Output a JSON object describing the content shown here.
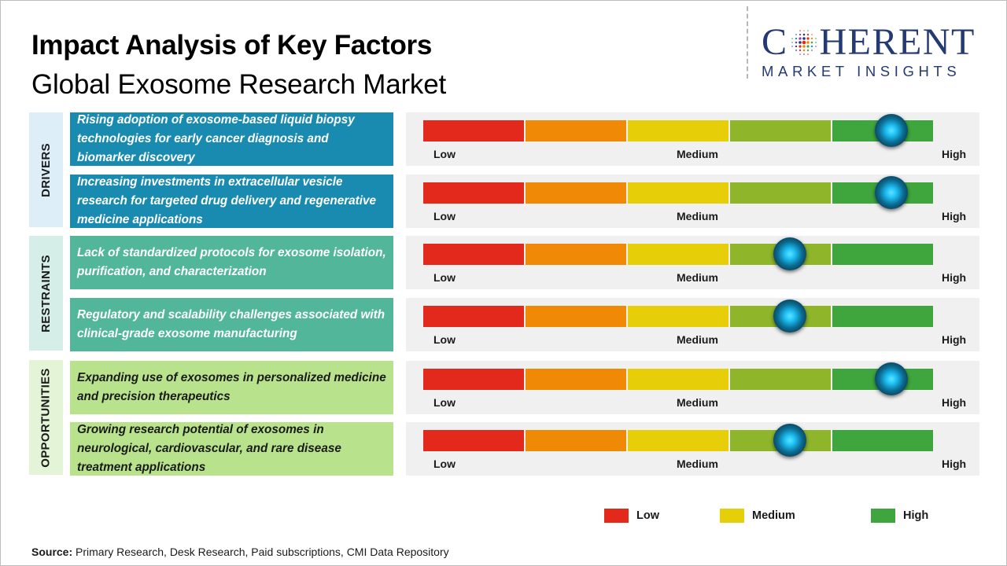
{
  "title": "Impact Analysis of Key Factors",
  "subtitle": "Global Exosome Research Market",
  "logo": {
    "line1_a": "C",
    "line1_b": "HERENT",
    "line2": "MARKET INSIGHTS"
  },
  "categories": {
    "drivers": "DRIVERS",
    "restraints": "RESTRAINTS",
    "opportunities": "OPPORTUNITIES"
  },
  "scale_labels": {
    "low": "Low",
    "medium": "Medium",
    "high": "High"
  },
  "colors": {
    "low": "#e2291c",
    "low_medium": "#f08a06",
    "medium": "#e6cf08",
    "medium_high": "#8fb52a",
    "high": "#3fa63d"
  },
  "factors": [
    {
      "category": "Drivers",
      "text": "Rising adoption of exosome-based liquid biopsy technologies for early cancer diagnosis and biomarker discovery",
      "impact_level": 5,
      "impact_scale_max": 5
    },
    {
      "category": "Drivers",
      "text": "Increasing investments in extracellular vesicle research for targeted drug delivery and regenerative medicine applications",
      "impact_level": 5,
      "impact_scale_max": 5
    },
    {
      "category": "Restraints",
      "text": "Lack of standardized protocols for exosome isolation, purification, and characterization",
      "impact_level": 4,
      "impact_scale_max": 5
    },
    {
      "category": "Restraints",
      "text": "Regulatory and scalability challenges associated with clinical-grade exosome manufacturing",
      "impact_level": 4,
      "impact_scale_max": 5
    },
    {
      "category": "Opportunities",
      "text": "Expanding use of exosomes in personalized medicine and precision therapeutics",
      "impact_level": 5,
      "impact_scale_max": 5
    },
    {
      "category": "Opportunities",
      "text": "Growing research potential of exosomes in neurological, cardiovascular, and rare disease treatment applications",
      "impact_level": 4,
      "impact_scale_max": 5
    }
  ],
  "legend": [
    {
      "label": "Low",
      "color": "#e2291c"
    },
    {
      "label": "Medium",
      "color": "#e6cf08"
    },
    {
      "label": "High",
      "color": "#3fa63d"
    }
  ],
  "source": {
    "label": "Source:",
    "text": " Primary Research, Desk Research, Paid subscriptions, CMI Data Repository"
  }
}
